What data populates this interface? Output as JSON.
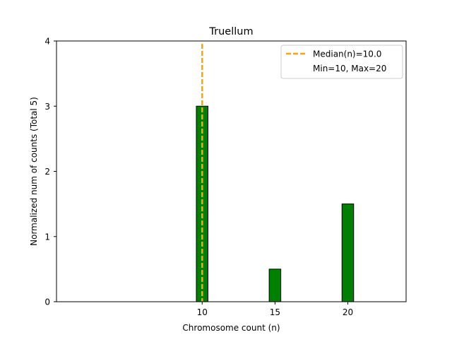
{
  "chart_data": {
    "type": "bar",
    "title": "Truellum",
    "xlabel": "Chromosome count (n)",
    "ylabel": "Normalized num of counts     (Total 5)",
    "xlim": [
      0,
      24
    ],
    "ylim": [
      0,
      4
    ],
    "xticks": [
      10,
      15,
      20
    ],
    "yticks": [
      0,
      1,
      2,
      3,
      4
    ],
    "bar_width": 0.8,
    "bar_color": "#008000",
    "bar_edge_color": "#000000",
    "bars": [
      {
        "x": 10,
        "value": 3.0
      },
      {
        "x": 15,
        "value": 0.5
      },
      {
        "x": 20,
        "value": 1.5
      }
    ],
    "median_line": {
      "x": 10.0,
      "color": "#ffa500",
      "style": "dashed"
    },
    "legend": {
      "placement": "top-right",
      "entries": [
        "Median(n)=10.0",
        "Min=10, Max=20"
      ]
    },
    "grid": false
  }
}
